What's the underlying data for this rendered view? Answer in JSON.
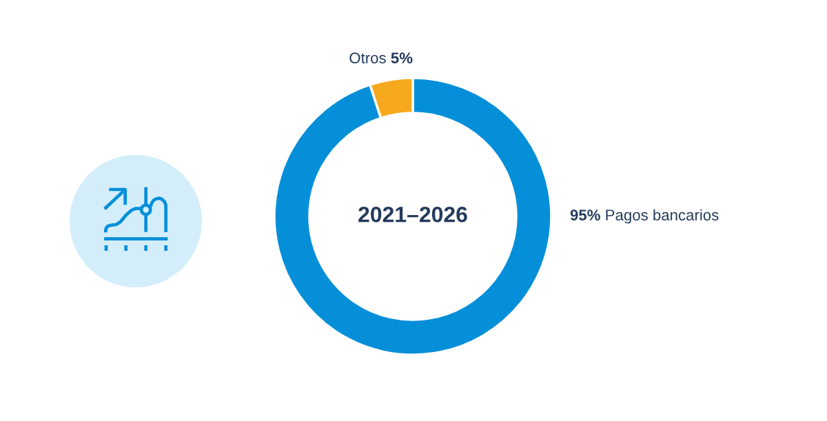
{
  "chart_data": {
    "type": "donut",
    "title": "2021–2026",
    "categories": [
      "Pagos bancarios",
      "Otros"
    ],
    "values": [
      95,
      5
    ],
    "colors": [
      "#068fd9",
      "#f6a91c"
    ],
    "value_labels": [
      "95%",
      "5%"
    ]
  }
}
